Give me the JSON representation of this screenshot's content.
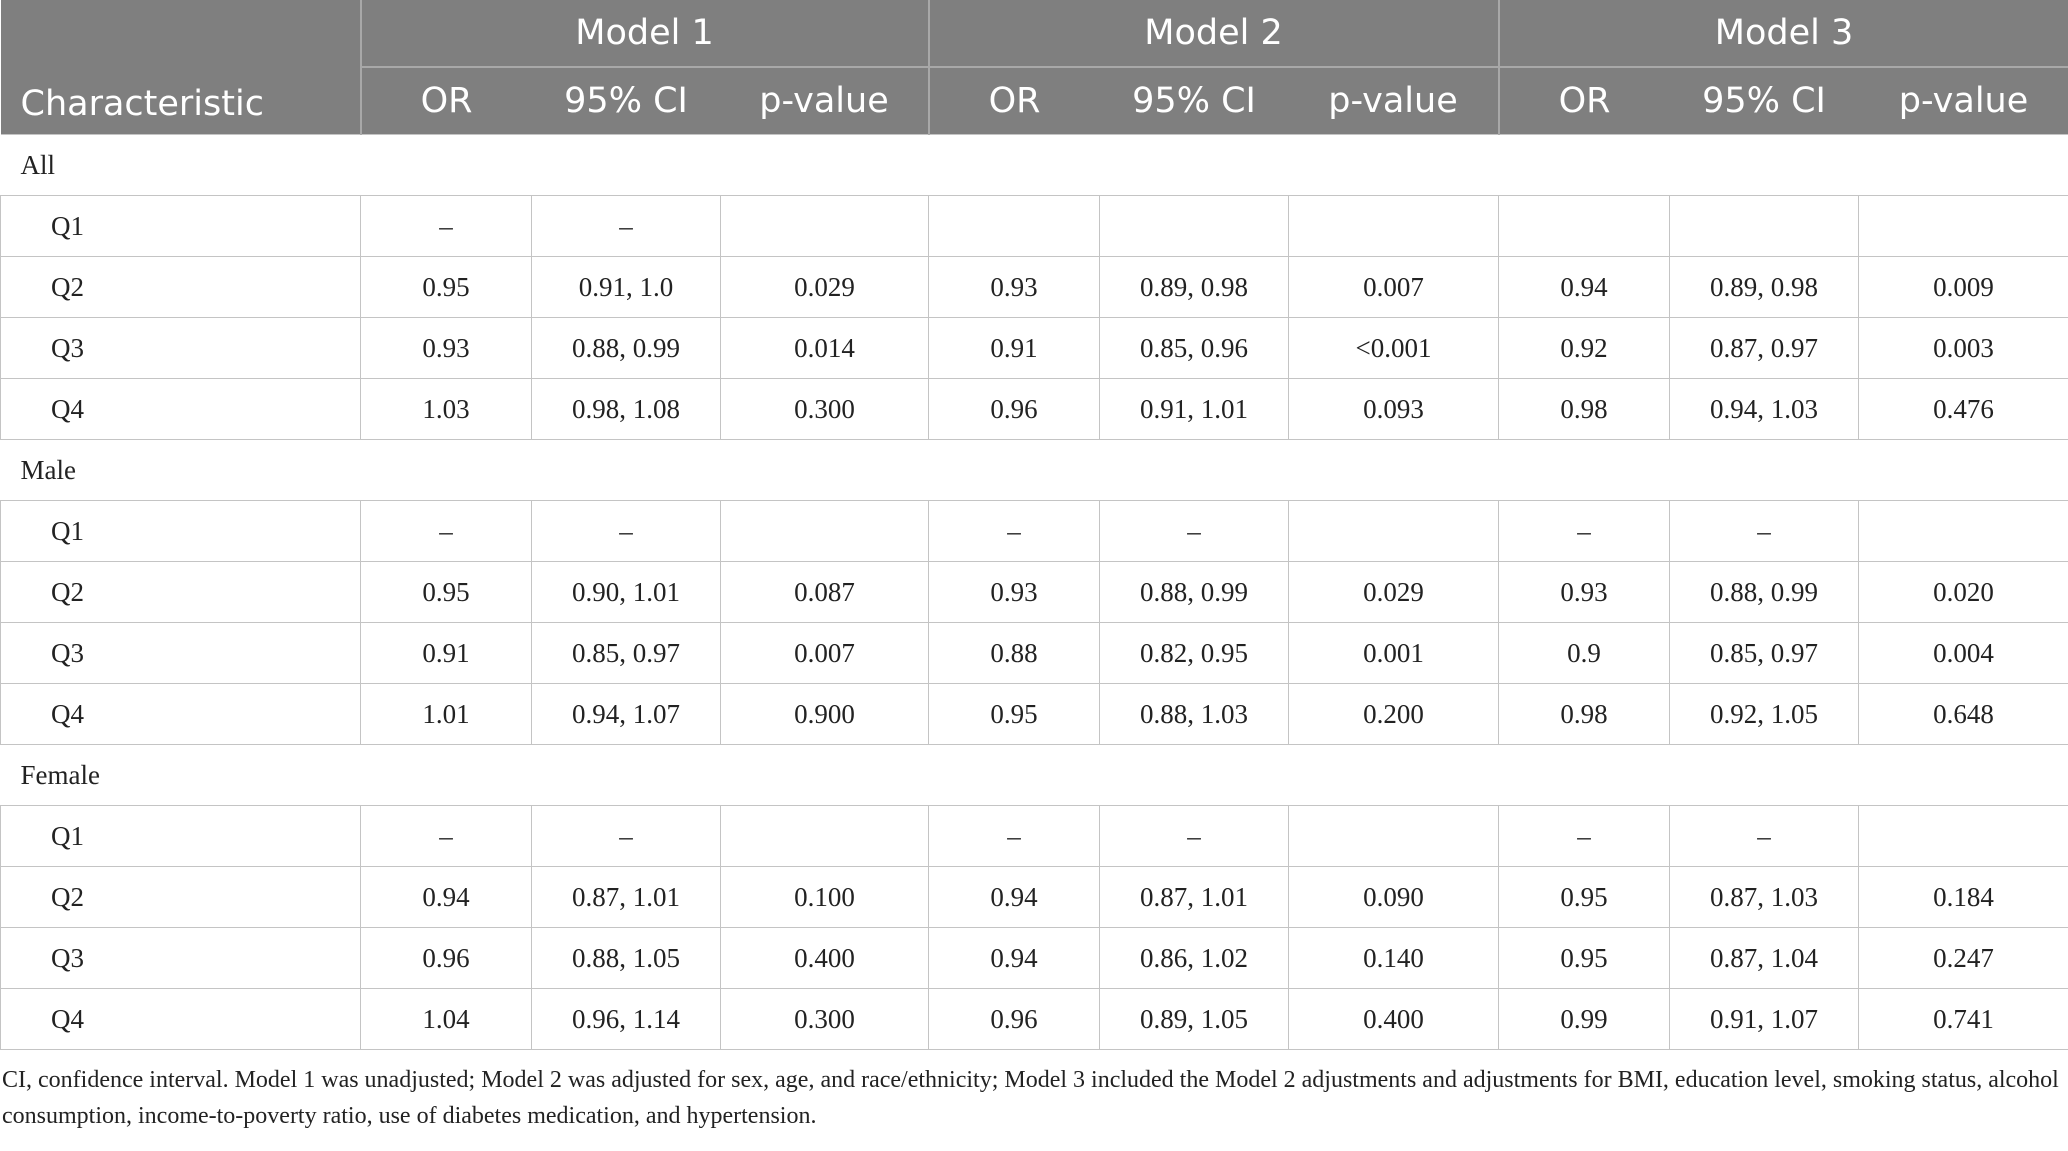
{
  "header": {
    "characteristic": "Characteristic",
    "models": [
      "Model 1",
      "Model 2",
      "Model 3"
    ],
    "columns": [
      "OR",
      "95% CI",
      "p-value"
    ]
  },
  "sections": [
    {
      "label": "All",
      "rows": [
        [
          "Q1",
          "–",
          "–",
          null,
          null,
          null,
          null,
          null,
          null,
          null
        ],
        [
          "Q2",
          "0.95",
          "0.91, 1.0",
          "0.029",
          "0.93",
          "0.89, 0.98",
          "0.007",
          "0.94",
          "0.89, 0.98",
          "0.009"
        ],
        [
          "Q3",
          "0.93",
          "0.88, 0.99",
          "0.014",
          "0.91",
          "0.85, 0.96",
          "<0.001",
          "0.92",
          "0.87, 0.97",
          "0.003"
        ],
        [
          "Q4",
          "1.03",
          "0.98, 1.08",
          "0.300",
          "0.96",
          "0.91, 1.01",
          "0.093",
          "0.98",
          "0.94, 1.03",
          "0.476"
        ]
      ]
    },
    {
      "label": "Male",
      "rows": [
        [
          "Q1",
          "–",
          "–",
          null,
          "–",
          "–",
          null,
          "–",
          "–",
          null
        ],
        [
          "Q2",
          "0.95",
          "0.90, 1.01",
          "0.087",
          "0.93",
          "0.88, 0.99",
          "0.029",
          "0.93",
          "0.88, 0.99",
          "0.020"
        ],
        [
          "Q3",
          "0.91",
          "0.85, 0.97",
          "0.007",
          "0.88",
          "0.82, 0.95",
          "0.001",
          "0.9",
          "0.85, 0.97",
          "0.004"
        ],
        [
          "Q4",
          "1.01",
          "0.94, 1.07",
          "0.900",
          "0.95",
          "0.88, 1.03",
          "0.200",
          "0.98",
          "0.92, 1.05",
          "0.648"
        ]
      ]
    },
    {
      "label": "Female",
      "rows": [
        [
          "Q1",
          "–",
          "–",
          null,
          "–",
          "–",
          null,
          "–",
          "–",
          null
        ],
        [
          "Q2",
          "0.94",
          "0.87, 1.01",
          "0.100",
          "0.94",
          "0.87, 1.01",
          "0.090",
          "0.95",
          "0.87, 1.03",
          "0.184"
        ],
        [
          "Q3",
          "0.96",
          "0.88, 1.05",
          "0.400",
          "0.94",
          "0.86, 1.02",
          "0.140",
          "0.95",
          "0.87, 1.04",
          "0.247"
        ],
        [
          "Q4",
          "1.04",
          "0.96, 1.14",
          "0.300",
          "0.96",
          "0.89, 1.05",
          "0.400",
          "0.99",
          "0.91, 1.07",
          "0.741"
        ]
      ]
    }
  ],
  "footnote": "CI, confidence interval. Model 1 was unadjusted; Model 2 was adjusted for sex, age, and race/ethnicity; Model 3 included the Model 2 adjustments and adjustments for BMI, education level, smoking status, alcohol consumption, income-to-poverty ratio, use of diabetes medication, and hypertension."
}
